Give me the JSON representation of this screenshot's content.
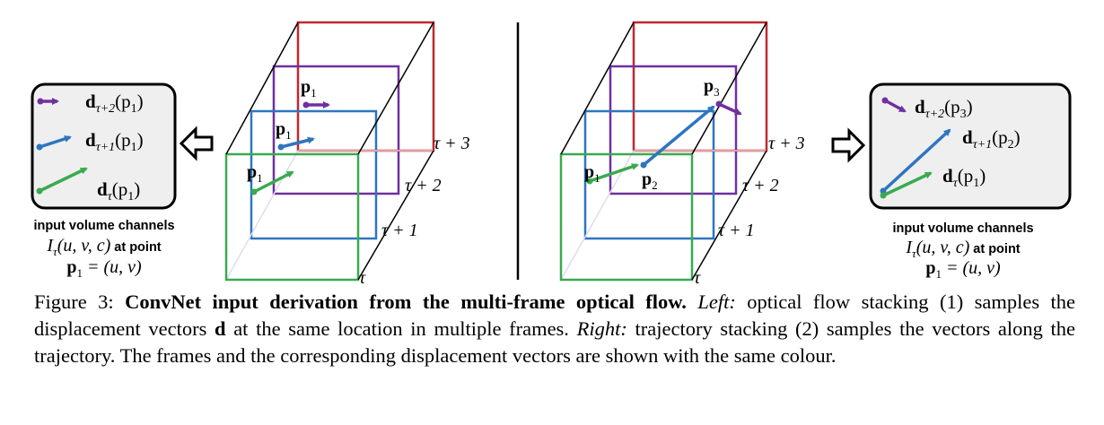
{
  "left_panel": {
    "channels": [
      {
        "label_main": "d",
        "label_sub": "τ+2",
        "label_arg": "(p",
        "label_arg_sub": "1",
        "label_close": ")",
        "color": "#7030a0"
      },
      {
        "label_main": "d",
        "label_sub": "τ+1",
        "label_arg": "(p",
        "label_arg_sub": "1",
        "label_close": ")",
        "color": "#2e75c0"
      },
      {
        "label_main": "d",
        "label_sub": "τ",
        "label_arg": "(p",
        "label_arg_sub": "1",
        "label_close": ")",
        "color": "#3aaa50"
      }
    ],
    "desc_line1": "input volume channels",
    "desc_line2_math": "I",
    "desc_line2_sub": "τ",
    "desc_line2_args": "(u, v, c)",
    "desc_line2_text": "at point",
    "desc_line3": "p",
    "desc_line3_sub": "1",
    "desc_line3_rest": " = (u, v)"
  },
  "right_panel": {
    "channels": [
      {
        "label_main": "d",
        "label_sub": "τ+2",
        "label_arg": "(p",
        "label_arg_sub": "3",
        "label_close": ")",
        "color": "#7030a0"
      },
      {
        "label_main": "d",
        "label_sub": "τ+1",
        "label_arg": "(p",
        "label_arg_sub": "2",
        "label_close": ")",
        "color": "#2e75c0"
      },
      {
        "label_main": "d",
        "label_sub": "τ",
        "label_arg": "(p",
        "label_arg_sub": "1",
        "label_close": ")",
        "color": "#3aaa50"
      }
    ],
    "desc_line1": "input volume channels",
    "desc_line2_math": "I",
    "desc_line2_sub": "τ",
    "desc_line2_args": "(u, v, c)",
    "desc_line2_text": "at point",
    "desc_line3": "p",
    "desc_line3_sub": "1",
    "desc_line3_rest": " = (u, v)"
  },
  "frames": {
    "labels": [
      "τ + 3",
      "τ + 2",
      "τ + 1",
      "τ"
    ],
    "colors": [
      "#c0282d",
      "#7030a0",
      "#2e75c0",
      "#3aaa50"
    ]
  },
  "left_points": {
    "p1_a": "p",
    "p1_a_sub": "1",
    "p1_b": "p",
    "p1_b_sub": "1",
    "p1_c": "p",
    "p1_c_sub": "1"
  },
  "right_points": {
    "p1": "p",
    "p1_sub": "1",
    "p2": "p",
    "p2_sub": "2",
    "p3": "p",
    "p3_sub": "3"
  },
  "caption": {
    "prefix": "Figure 3: ",
    "title": "ConvNet input derivation from the multi-frame optical flow.",
    "left_label": "Left:",
    "text1": " optical flow stacking (1) samples the displacement vectors ",
    "d": "d",
    "text2": " at the same location in multiple frames. ",
    "right_label": "Right:",
    "text3": " trajectory stacking (2) samples the vectors along the trajectory. The frames and the corresponding displacement vectors are shown with the same colour."
  }
}
